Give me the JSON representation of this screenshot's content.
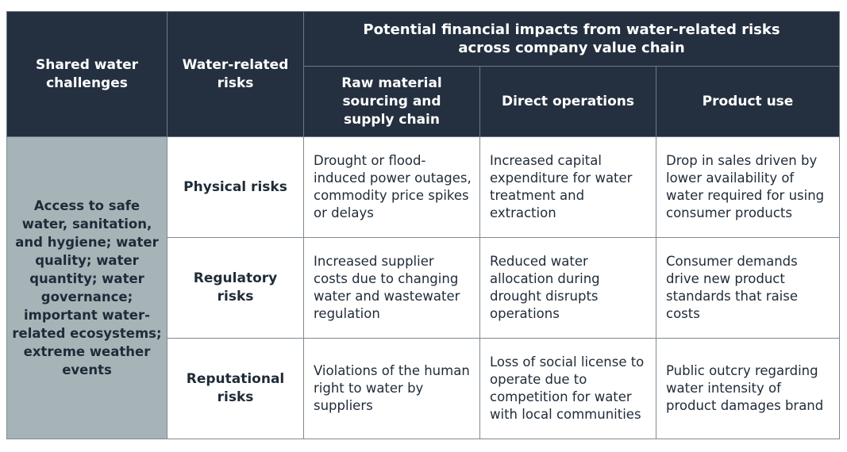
{
  "header": {
    "shared_challenges": "Shared water challenges",
    "water_risks": "Water-related risks",
    "impacts_title": "Potential financial impacts from water-related risks across company value chain",
    "columns": [
      "Raw material sourcing and supply chain",
      "Direct operations",
      "Product use"
    ]
  },
  "shared_challenge_text": "Access to safe water, sanitation, and hygiene; water quality; water quantity; water governance; important water-related ecosystems; extreme weather events",
  "rows": [
    {
      "risk": "Physical risks",
      "cells": [
        "Drought or flood-induced power outages, commodity price spikes or delays",
        "Increased capital expenditure for water treatment and extraction",
        "Drop in sales driven by lower availability of water required for using consumer products"
      ]
    },
    {
      "risk": "Regulatory risks",
      "cells": [
        "Increased supplier costs due to changing water and wastewater regulation",
        "Reduced water allocation during drought disrupts operations",
        "Consumer demands drive new product standards that raise costs"
      ]
    },
    {
      "risk": "Reputational risks",
      "cells": [
        "Violations of the human right to water by suppliers",
        "Loss of social license to operate due to competition for water with local communities",
        "Public outcry regarding water intensity of product damages brand"
      ]
    }
  ],
  "colors": {
    "header_bg": "#24303f",
    "challenge_bg": "#a7b4b7",
    "text": "#1f2b38"
  }
}
